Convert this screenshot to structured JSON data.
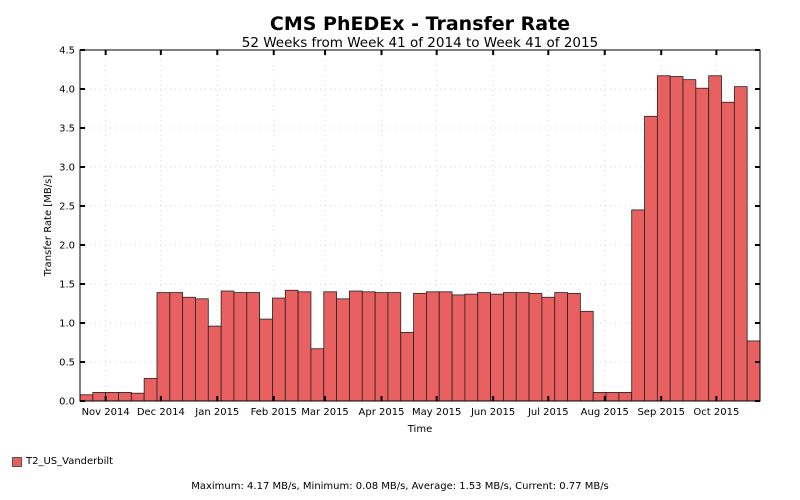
{
  "chart_data": {
    "type": "bar",
    "title": "CMS PhEDEx - Transfer Rate",
    "subtitle": "52 Weeks from Week 41 of 2014 to Week 41 of 2015",
    "xlabel": "Time",
    "ylabel": "Transfer Rate [MB/s]",
    "ylim": [
      0,
      4.5
    ],
    "yticks": [
      "0.0",
      "0.5",
      "1.0",
      "1.5",
      "2.0",
      "2.5",
      "3.0",
      "3.5",
      "4.0",
      "4.5"
    ],
    "xticks": [
      {
        "label": "Nov 2014",
        "week": 2
      },
      {
        "label": "Dec 2014",
        "week": 6.3
      },
      {
        "label": "Jan 2015",
        "week": 10.7
      },
      {
        "label": "Feb 2015",
        "week": 15.1
      },
      {
        "label": "Mar 2015",
        "week": 19.1
      },
      {
        "label": "Apr 2015",
        "week": 23.5
      },
      {
        "label": "May 2015",
        "week": 27.8
      },
      {
        "label": "Jun 2015",
        "week": 32.2
      },
      {
        "label": "Jul 2015",
        "week": 36.5
      },
      {
        "label": "Aug 2015",
        "week": 40.9
      },
      {
        "label": "Sep 2015",
        "week": 45.3
      },
      {
        "label": "Oct 2015",
        "week": 49.6
      }
    ],
    "grid": true,
    "legend_position": "bottom-left",
    "series": [
      {
        "name": "T2_US_Vanderbilt",
        "color": "#e8605f",
        "values": [
          0.08,
          0.11,
          0.11,
          0.11,
          0.1,
          0.29,
          1.39,
          1.39,
          1.33,
          1.31,
          0.96,
          1.41,
          1.39,
          1.39,
          1.05,
          1.32,
          1.42,
          1.4,
          0.67,
          1.4,
          1.31,
          1.41,
          1.4,
          1.39,
          1.39,
          0.88,
          1.38,
          1.4,
          1.4,
          1.36,
          1.37,
          1.39,
          1.37,
          1.39,
          1.39,
          1.38,
          1.33,
          1.39,
          1.38,
          1.15,
          0.11,
          0.11,
          0.11,
          2.45,
          3.65,
          4.17,
          4.16,
          4.12,
          4.01,
          4.17,
          3.83,
          4.03,
          0.77
        ]
      }
    ],
    "summary": "Maximum: 4.17 MB/s, Minimum: 0.08 MB/s, Average: 1.53 MB/s, Current: 0.77 MB/s"
  }
}
